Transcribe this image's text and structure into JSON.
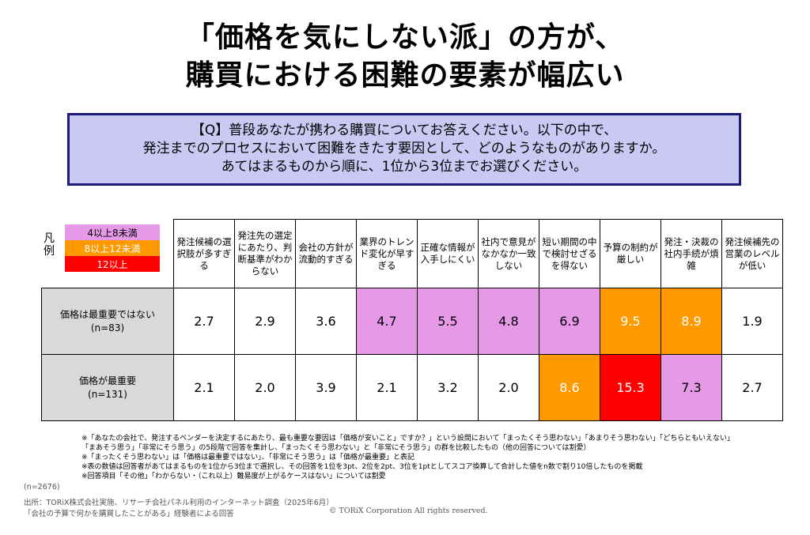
{
  "title": {
    "line1": "「価格を気にしない派」の方が、",
    "line2": "購買における困難の要素が幅広い"
  },
  "question": {
    "line1": "【Q】普段あなたが携わる購買についてお答えください。以下の中で、",
    "line2": "発注までのプロセスにおいて困難をきたす要因として、どのようなものがありますか。",
    "line3": "あてはまるものから順に、1位から3位までお選びください。"
  },
  "legend": {
    "label": "凡例",
    "items": [
      {
        "label": "4以上8未満",
        "color": "#e699e6",
        "text_color": "#000000"
      },
      {
        "label": "8以上12未満",
        "color": "#ff9900",
        "text_color": "#ffffff"
      },
      {
        "label": "12以上",
        "color": "#ff0000",
        "text_color": "#ffffff"
      }
    ]
  },
  "chart_data": {
    "type": "table",
    "title": "「価格を気にしない派」の方が、購買における困難の要素が幅広い",
    "columns": [
      "発注候補の選択肢が多すぎる",
      "発注先の選定にあたり、判断基準がわからない",
      "会社の方針が流動的すぎる",
      "業界のトレンド変化が早すぎる",
      "正確な情報が入手しにくい",
      "社内で意見がなかなか一致しない",
      "短い期間の中で検討せざるを得ない",
      "予算の制約が厳しい",
      "発注・決裁の社内手続が煩雑",
      "発注候補先の営業のレベルが低い"
    ],
    "rows": [
      {
        "label": "価格は最重要ではない",
        "n": "(n=83)",
        "values": [
          "2.7",
          "2.9",
          "3.6",
          "4.7",
          "5.5",
          "4.8",
          "6.9",
          "9.5",
          "8.9",
          "1.9"
        ]
      },
      {
        "label": "価格が最重要",
        "n": "(n=131)",
        "values": [
          "2.1",
          "2.0",
          "3.9",
          "2.1",
          "3.2",
          "2.0",
          "8.6",
          "15.3",
          "7.3",
          "2.7"
        ]
      }
    ],
    "color_scale": [
      {
        "min": 4,
        "max": 8,
        "color": "#e699e6",
        "text_color": "#000000"
      },
      {
        "min": 8,
        "max": 12,
        "color": "#ff9900",
        "text_color": "#ffffff"
      },
      {
        "min": 12,
        "max": null,
        "color": "#ff0000",
        "text_color": "#ffffff"
      }
    ]
  },
  "notes": [
    "※「あなたの会社で、発注するベンダーを決定するにあたり、最も重要な要因は「価格が安いこと」ですか？」という設問において「まったくそう思わない」「あまりそう思わない」「どちらともいえない」",
    "「まあそう思う」「非常にそう思う」の5段階で回答を集計し、「まったくそう思わない」と「非常にそう思う」の群を比較したもの（他の回答については割愛）",
    "※「まったくそう思わない」は「価格は最重要ではない」、「非常にそう思う」は「価格が最重要」と表記",
    "※表の数値は回答者があてはまるものを1位から3位まで選択し、その回答を1位を3pt、2位を2pt、3位を1ptとしてスコア換算して合計した値をn数で割り10倍したものを掲載",
    "※回答項目「その他」「わからない・（これ以上）難易度が上がるケースはない」については割愛"
  ],
  "footer": {
    "n_total": "(n=2676)",
    "source1": "出所：TORiX株式会社実施、リサーチ会社パネル利用のインターネット調査（2025年6月）",
    "source2": "「会社の予算で何かを購買したことがある」経験者による回答",
    "copyright": "© TORiX Corporation All rights reserved."
  }
}
